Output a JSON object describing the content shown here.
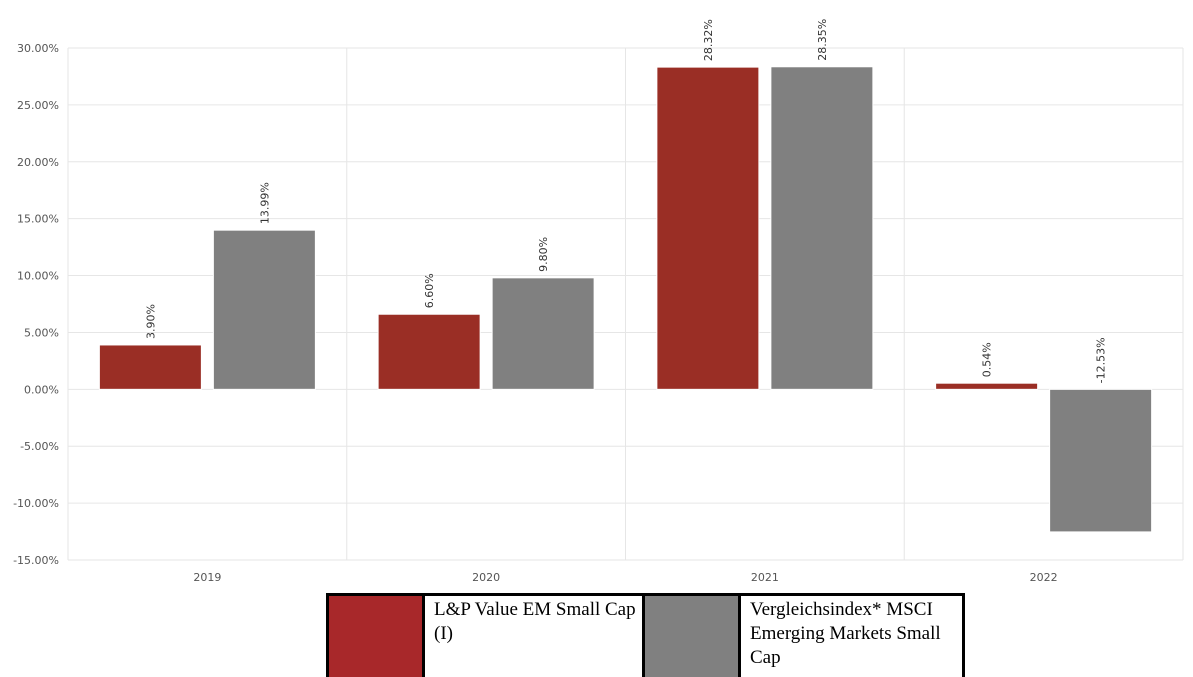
{
  "chart_data": {
    "type": "bar",
    "categories": [
      "2019",
      "2020",
      "2021",
      "2022"
    ],
    "series": [
      {
        "name": "L&P Value EM Small Cap (I)",
        "values": [
          3.9,
          6.6,
          28.32,
          0.54
        ],
        "labels": [
          "3.90%",
          "6.60%",
          "28.32%",
          "0.54%"
        ],
        "color": "#9a2e25"
      },
      {
        "name": "Vergleichsindex* MSCI Emerging Markets Small Cap",
        "values": [
          13.99,
          9.8,
          28.35,
          -12.53
        ],
        "labels": [
          "13.99%",
          "9.80%",
          "28.35%",
          "-12.53%"
        ],
        "color": "#808080"
      }
    ],
    "ylim": [
      -15,
      30
    ],
    "yticks": [
      30,
      25,
      20,
      15,
      10,
      5,
      0,
      -5,
      -10,
      -15
    ],
    "ytick_labels": [
      "30.00%",
      "25.00%",
      "20.00%",
      "15.00%",
      "10.00%",
      "5.00%",
      "0.00%",
      "-5.00%",
      "-10.00%",
      "-15.00%"
    ],
    "grid": true,
    "legend_position": "bottom-center"
  },
  "legend": {
    "series1_label": "L&P Value EM Small Cap (I)",
    "series2_label": "Vergleichsindex* MSCI Emerging Markets Small Cap",
    "series1_color": "#a8282a",
    "series2_color": "#808080"
  }
}
